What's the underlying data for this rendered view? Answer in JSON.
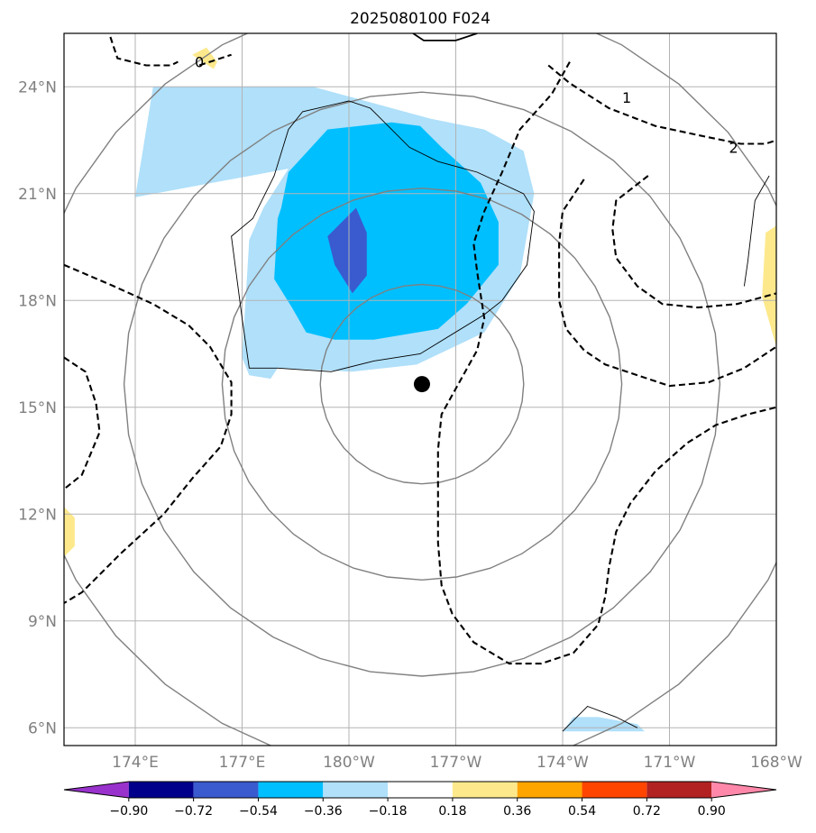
{
  "title": "2025080100 F024",
  "chart_data": {
    "type": "map-contour",
    "lon_range": [
      172,
      168
    ],
    "lat_range": [
      5.5,
      25.5
    ],
    "x_ticks": [
      {
        "lon": 174,
        "label": "174°E"
      },
      {
        "lon": 177,
        "label": "177°E"
      },
      {
        "lon": 180,
        "label": "180°W"
      },
      {
        "lon": 183,
        "label": "177°W"
      },
      {
        "lon": 186,
        "label": "174°W"
      },
      {
        "lon": 189,
        "label": "171°W"
      },
      {
        "lon": 192,
        "label": "168°W"
      }
    ],
    "y_ticks": [
      {
        "lat": 6,
        "label": "6°N"
      },
      {
        "lat": 9,
        "label": "9°N"
      },
      {
        "lat": 12,
        "label": "12°N"
      },
      {
        "lat": 15,
        "label": "15°N"
      },
      {
        "lat": 18,
        "label": "18°N"
      },
      {
        "lat": 21,
        "label": "21°N"
      },
      {
        "lat": 24,
        "label": "24°N"
      }
    ],
    "grid": true,
    "center_marker": {
      "lon": 182.05,
      "lat": 15.65
    },
    "range_rings_deg": [
      2.8,
      5.5,
      8.2,
      11.0
    ],
    "fill_levels": [
      {
        "lo": null,
        "hi": -0.9,
        "color": "#9932cc"
      },
      {
        "lo": -0.9,
        "hi": -0.72,
        "color": "#00008b"
      },
      {
        "lo": -0.72,
        "hi": -0.54,
        "color": "#3a5bcf"
      },
      {
        "lo": -0.54,
        "hi": -0.36,
        "color": "#00bfff"
      },
      {
        "lo": -0.36,
        "hi": -0.18,
        "color": "#b0e0fa"
      },
      {
        "lo": -0.18,
        "hi": 0.18,
        "color": "#ffffff"
      },
      {
        "lo": 0.18,
        "hi": 0.36,
        "color": "#fde98c"
      },
      {
        "lo": 0.36,
        "hi": 0.54,
        "color": "#ffa500"
      },
      {
        "lo": 0.54,
        "hi": 0.72,
        "color": "#ff4500"
      },
      {
        "lo": 0.72,
        "hi": 0.9,
        "color": "#b22222"
      },
      {
        "lo": 0.9,
        "hi": null,
        "color": "#ff88aa"
      }
    ],
    "colorbar_tick_labels": [
      "−0.90",
      "−0.72",
      "−0.54",
      "−0.36",
      "−0.18",
      "0.18",
      "0.36",
      "0.54",
      "0.72",
      "0.90"
    ],
    "dashed_contour_labels": [
      "0",
      "1",
      "2"
    ],
    "shaded_regions": [
      {
        "level": -0.27,
        "color": "#b0e0fa",
        "outline": [
          [
            174.0,
            20.9
          ],
          [
            174.5,
            24.0
          ],
          [
            179.0,
            24.0
          ],
          [
            182.3,
            23.1
          ],
          [
            183.8,
            22.8
          ],
          [
            184.9,
            22.2
          ],
          [
            185.2,
            21.0
          ],
          [
            184.8,
            18.7
          ],
          [
            183.8,
            17.1
          ],
          [
            181.9,
            16.2
          ],
          [
            180.1,
            16.0
          ],
          [
            178.0,
            16.1
          ],
          [
            177.8,
            15.8
          ],
          [
            177.2,
            15.9
          ],
          [
            177.0,
            16.4
          ],
          [
            177.2,
            19.7
          ],
          [
            177.6,
            20.6
          ],
          [
            178.3,
            21.7
          ]
        ]
      },
      {
        "level": -0.45,
        "color": "#00bfff",
        "outline": [
          [
            178.1,
            20.6
          ],
          [
            178.3,
            21.6
          ],
          [
            179.4,
            22.8
          ],
          [
            181.2,
            23.0
          ],
          [
            182.0,
            22.9
          ],
          [
            182.6,
            22.3
          ],
          [
            183.7,
            21.3
          ],
          [
            184.2,
            20.2
          ],
          [
            184.2,
            19.0
          ],
          [
            183.3,
            17.9
          ],
          [
            182.5,
            17.2
          ],
          [
            180.7,
            16.9
          ],
          [
            179.6,
            16.9
          ],
          [
            178.8,
            17.1
          ],
          [
            178.4,
            17.8
          ],
          [
            177.9,
            18.6
          ],
          [
            178.0,
            20.3
          ]
        ]
      },
      {
        "level": -0.63,
        "color": "#3a5bcf",
        "outline": [
          [
            179.4,
            19.8
          ],
          [
            180.2,
            20.6
          ],
          [
            180.5,
            19.9
          ],
          [
            180.5,
            18.7
          ],
          [
            180.1,
            18.2
          ],
          [
            179.6,
            19.0
          ]
        ]
      },
      {
        "level": 0.27,
        "color": "#fde98c",
        "outline": [
          [
            175.6,
            24.9
          ],
          [
            176.2,
            24.5
          ],
          [
            176.3,
            24.7
          ],
          [
            176.0,
            25.1
          ]
        ]
      },
      {
        "level": 0.27,
        "color": "#fde98c",
        "outline": [
          [
            191.6,
            18.1
          ],
          [
            192.0,
            16.7
          ],
          [
            192.0,
            20.1
          ],
          [
            191.7,
            19.9
          ]
        ]
      },
      {
        "level": 0.27,
        "color": "#fde98c",
        "outline": [
          [
            172.0,
            12.2
          ],
          [
            172.3,
            11.9
          ],
          [
            172.3,
            11.1
          ],
          [
            172.0,
            10.8
          ]
        ]
      },
      {
        "level": -0.27,
        "color": "#b0e0fa",
        "outline": [
          [
            186.0,
            5.9
          ],
          [
            186.3,
            6.3
          ],
          [
            187.0,
            6.3
          ],
          [
            188.1,
            6.1
          ],
          [
            188.3,
            5.9
          ]
        ]
      }
    ]
  },
  "colorbar": {
    "label_values": [
      -0.9,
      -0.72,
      -0.54,
      -0.36,
      -0.18,
      0.18,
      0.36,
      0.54,
      0.72,
      0.9
    ]
  }
}
